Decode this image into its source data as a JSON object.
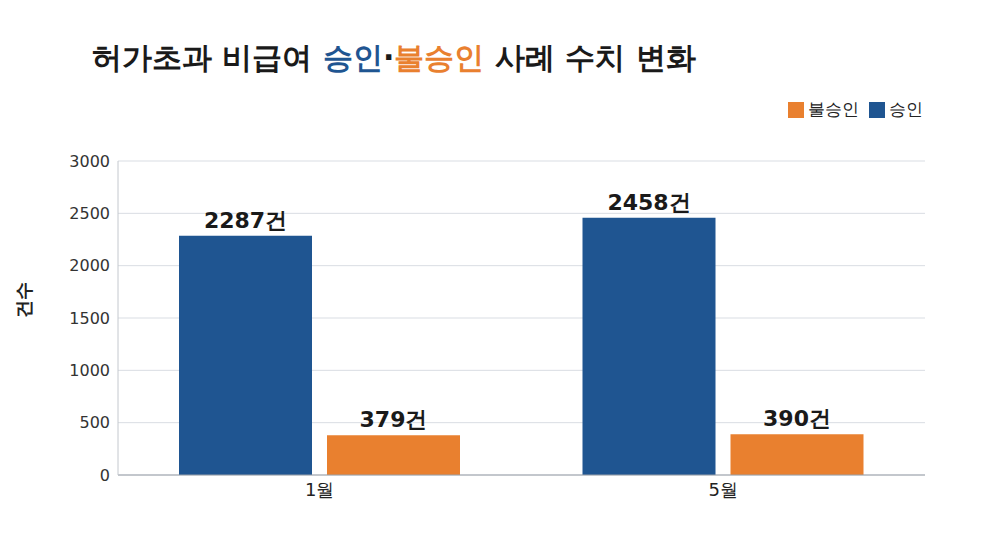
{
  "chart_data": {
    "type": "bar",
    "title": "허가초과 비급여 승인·불승인 사례 수치 변화",
    "y_label": "건수",
    "categories": [
      "1월",
      "5월"
    ],
    "series": [
      {
        "name": "승인",
        "color": "#1f5591",
        "values": [
          2287,
          2458
        ],
        "value_labels": [
          "2287건",
          "2458건"
        ]
      },
      {
        "name": "불승인",
        "color": "#e9802f",
        "values": [
          379,
          390
        ],
        "value_labels": [
          "379건",
          "390건"
        ]
      }
    ],
    "ylim": [
      0,
      3000
    ],
    "yticks": [
      0,
      500,
      1000,
      1500,
      2000,
      2500,
      3000
    ],
    "grid": true,
    "legend": "upper right",
    "data_labels": true
  }
}
